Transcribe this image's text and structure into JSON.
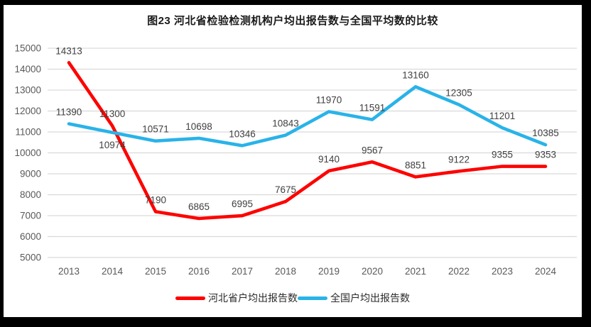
{
  "title": "图23  河北省检验检测机构户均出报告数与全国平均数的比较",
  "chart_data": {
    "type": "line",
    "categories": [
      "2013",
      "2014",
      "2015",
      "2016",
      "2017",
      "2018",
      "2019",
      "2020",
      "2021",
      "2022",
      "2023",
      "2024"
    ],
    "series": [
      {
        "name": "河北省户均出报告数",
        "color": "#fe0000",
        "values": [
          14313,
          11300,
          7190,
          6865,
          6995,
          7675,
          9140,
          9567,
          8851,
          9122,
          9355,
          9353
        ]
      },
      {
        "name": "全国户均出报告数",
        "color": "#29b3e8",
        "values": [
          11390,
          10974,
          10571,
          10698,
          10346,
          10843,
          11970,
          11591,
          13160,
          12305,
          11201,
          10385
        ]
      }
    ],
    "ylim": [
      5000,
      15000
    ],
    "ytick_step": 1000,
    "grid": true,
    "data_labels": true,
    "legend_position": "bottom",
    "colors": {
      "gridline": "#d9d9d9",
      "axis_label": "#595959",
      "data_label": "#3f3f3f"
    }
  }
}
